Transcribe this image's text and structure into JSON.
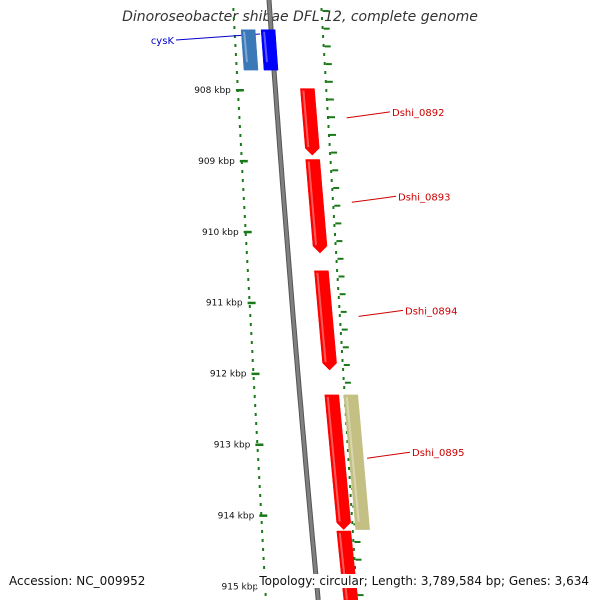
{
  "title": "Dinoroseobacter shibae DFL 12, complete genome",
  "footer": {
    "accession": "Accession: NC_009952",
    "summary": "Topology: circular; Length: 3,789,584 bp; Genes: 3,634"
  },
  "colors": {
    "gene_forward": "#ff0000",
    "gene_reverse": "#0000ff",
    "gene_other": "#c4c084",
    "gene_blue_light": "#3a78b8",
    "tick": "#1a7a1a",
    "backbone": "#808080",
    "label_red": "#cc0000",
    "label_blue": "#0000cc"
  },
  "axis": {
    "unit": "kbp",
    "ticks": [
      {
        "value": 908,
        "label": "908 kbp"
      },
      {
        "value": 909,
        "label": "909 kbp"
      },
      {
        "value": 910,
        "label": "910 kbp"
      },
      {
        "value": 911,
        "label": "911 kbp"
      },
      {
        "value": 912,
        "label": "912 kbp"
      },
      {
        "value": 913,
        "label": "913 kbp"
      },
      {
        "value": 914,
        "label": "914 kbp"
      },
      {
        "value": 915,
        "label": "915 kbp"
      }
    ]
  },
  "genes": [
    {
      "name": "cysK",
      "label": "cysK",
      "strand": "+",
      "color": "blue",
      "start": 907.15,
      "end": 907.72
    },
    {
      "name": "cysK-b",
      "label": "",
      "strand": "+",
      "color": "blue_light",
      "start": 907.15,
      "end": 907.72
    },
    {
      "name": "Dshi_0892",
      "label": "Dshi_0892",
      "strand": "-",
      "color": "red",
      "start": 907.98,
      "end": 908.92
    },
    {
      "name": "Dshi_0893",
      "label": "Dshi_0893",
      "strand": "-",
      "color": "red",
      "start": 908.98,
      "end": 910.3
    },
    {
      "name": "Dshi_0894",
      "label": "Dshi_0894",
      "strand": "-",
      "color": "red",
      "start": 910.55,
      "end": 911.95
    },
    {
      "name": "Dshi_0895",
      "label": "Dshi_0895",
      "strand": "-",
      "color": "red",
      "start": 912.3,
      "end": 914.2
    },
    {
      "name": "Dshi_0895-other",
      "label": "",
      "strand": "+",
      "color": "other",
      "start": 912.3,
      "end": 914.2
    },
    {
      "name": "Dshi_0896",
      "label": "",
      "strand": "-",
      "color": "red",
      "start": 914.22,
      "end": 915.3
    }
  ]
}
